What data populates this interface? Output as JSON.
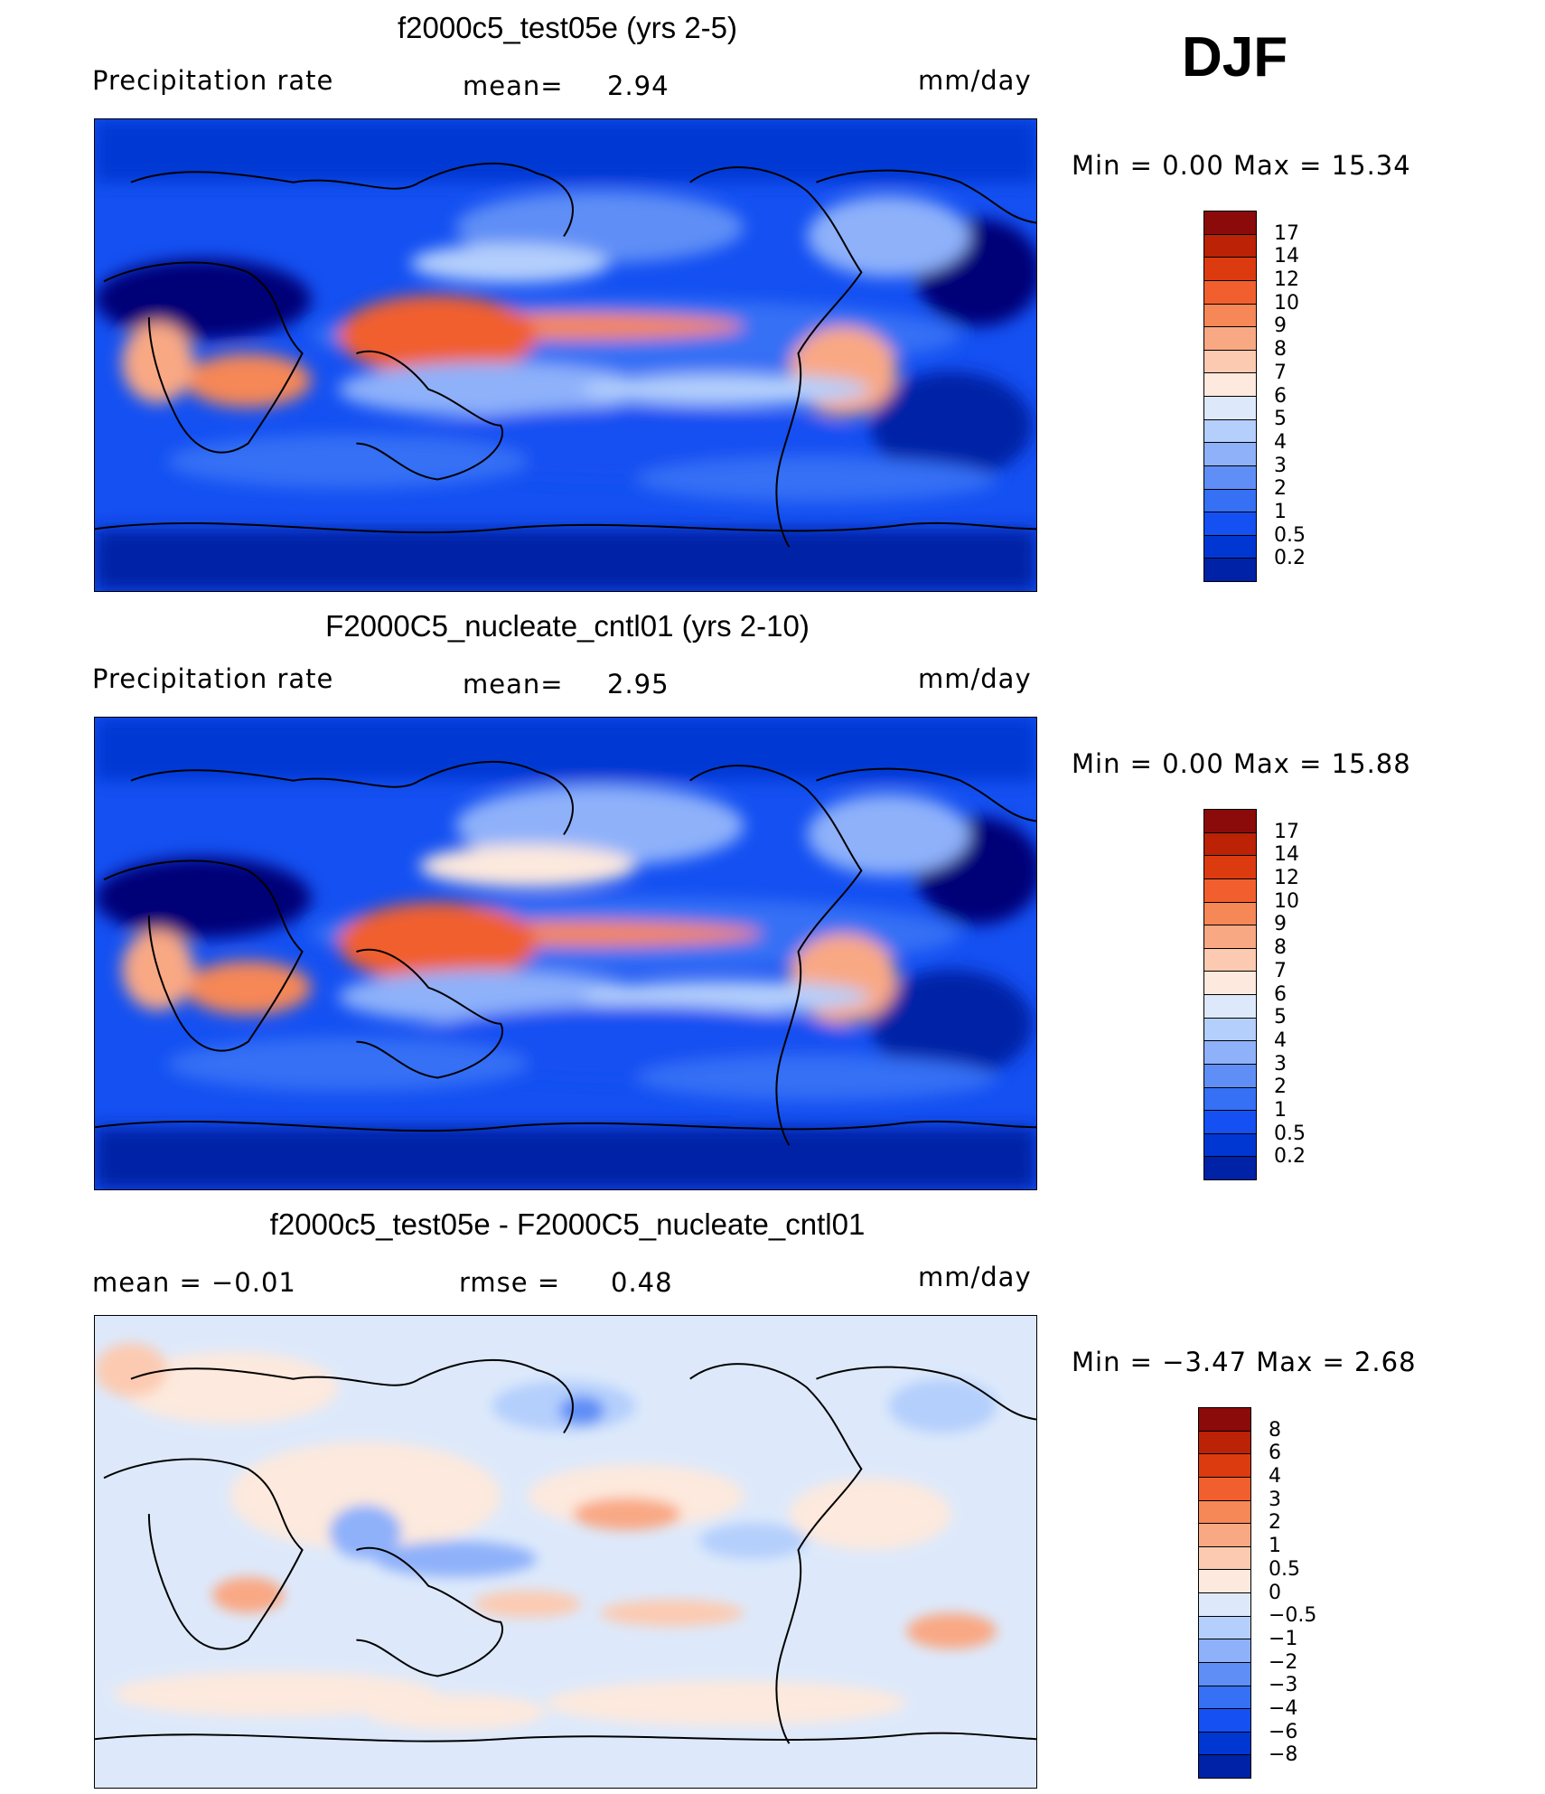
{
  "season": "DJF",
  "colors": {
    "abs_scale": [
      "#000077",
      "#0022a6",
      "#0037d3",
      "#1450f2",
      "#3570f5",
      "#5f8ef6",
      "#8eb1fa",
      "#b4cffc",
      "#dde9fb",
      "#fde9dd",
      "#fccab1",
      "#f9a884",
      "#f68757",
      "#f15f2e",
      "#dc3b10",
      "#bb2206",
      "#8b0a0a"
    ],
    "diff_scale": [
      "#000077",
      "#0022a6",
      "#0037d3",
      "#1450f2",
      "#3570f5",
      "#5f8ef6",
      "#8eb1fa",
      "#b4cffc",
      "#dde9fb",
      "#fde9dd",
      "#fccab1",
      "#f9a884",
      "#f68757",
      "#f15f2e",
      "#dc3b10",
      "#bb2206",
      "#8b0a0a"
    ]
  },
  "panels": [
    {
      "title": "f2000c5_test05e (yrs 2-5)",
      "left_label": "Precipitation  rate",
      "center_label": "mean=",
      "center_value": "2.94",
      "right_label": "mm/day",
      "minmax": "Min  =     0.00  Max  =     15.34",
      "ticks": [
        "17",
        "14",
        "12",
        "10",
        "9",
        "8",
        "7",
        "6",
        "5",
        "4",
        "3",
        "2",
        "1",
        "0.5",
        "0.2"
      ]
    },
    {
      "title": "F2000C5_nucleate_cntl01 (yrs 2-10)",
      "left_label": "Precipitation  rate",
      "center_label": "mean=",
      "center_value": "2.95",
      "right_label": "mm/day",
      "minmax": "Min  =     0.00  Max  =     15.88",
      "ticks": [
        "17",
        "14",
        "12",
        "10",
        "9",
        "8",
        "7",
        "6",
        "5",
        "4",
        "3",
        "2",
        "1",
        "0.5",
        "0.2"
      ]
    },
    {
      "title": "f2000c5_test05e - F2000C5_nucleate_cntl01",
      "left_label": "mean  =    −0.01",
      "center_label": "rmse  =",
      "center_value": "0.48",
      "right_label": "mm/day",
      "minmax": "Min  =    −3.47  Max  =      2.68",
      "ticks": [
        "8",
        "6",
        "4",
        "3",
        "2",
        "1",
        "0.5",
        "0",
        "−0.5",
        "−1",
        "−2",
        "−3",
        "−4",
        "−6",
        "−8"
      ]
    }
  ]
}
